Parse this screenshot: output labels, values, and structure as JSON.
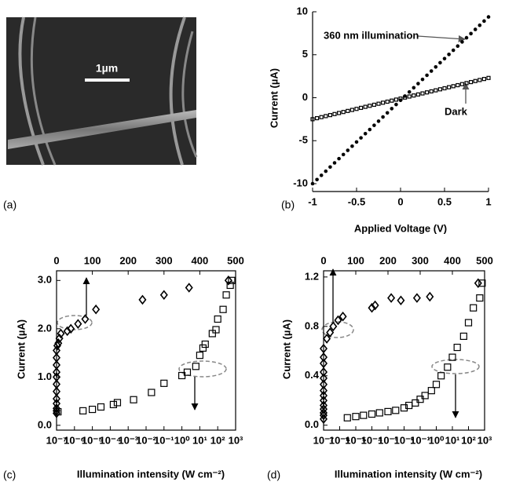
{
  "panels": {
    "labels": [
      "(a)",
      "(b)",
      "(c)",
      "(d)"
    ],
    "scale_bar": "1µm"
  },
  "chart_data": [
    {
      "type": "scatter",
      "xlabel": "Applied Voltage (V)",
      "ylabel": "Current (µA)",
      "annotations": [
        "360 nm illumination",
        "Dark"
      ],
      "xlim": [
        -1,
        1
      ],
      "ylim": [
        -10,
        10
      ],
      "xticks": [
        -1,
        -0.5,
        0,
        0.5,
        1
      ],
      "yticks": [
        -10,
        -5,
        0,
        5,
        10
      ],
      "x": [
        -1,
        -0.95,
        -0.9,
        -0.85,
        -0.8,
        -0.75,
        -0.7,
        -0.65,
        -0.6,
        -0.55,
        -0.5,
        -0.45,
        -0.4,
        -0.35,
        -0.3,
        -0.25,
        -0.2,
        -0.15,
        -0.1,
        -0.05,
        0,
        0.05,
        0.1,
        0.15,
        0.2,
        0.25,
        0.3,
        0.35,
        0.4,
        0.45,
        0.5,
        0.55,
        0.6,
        0.65,
        0.7,
        0.75,
        0.8,
        0.85,
        0.9,
        0.95,
        1
      ],
      "series": [
        {
          "marker": "dot",
          "color": "#000000",
          "values": [
            -10,
            -9.52,
            -9.03,
            -8.55,
            -8.06,
            -7.58,
            -7.09,
            -6.61,
            -6.12,
            -5.64,
            -5.15,
            -4.67,
            -4.18,
            -3.7,
            -3.21,
            -2.73,
            -2.24,
            -1.76,
            -1.27,
            -0.79,
            -0.3,
            0.19,
            0.67,
            1.16,
            1.64,
            2.13,
            2.61,
            3.1,
            3.58,
            4.07,
            4.55,
            5.04,
            5.52,
            6.01,
            6.49,
            6.98,
            7.46,
            7.95,
            8.43,
            8.92,
            9.4
          ]
        },
        {
          "marker": "square",
          "color": "#000000",
          "values": [
            -2.5,
            -2.38,
            -2.26,
            -2.14,
            -2.02,
            -1.9,
            -1.78,
            -1.66,
            -1.54,
            -1.42,
            -1.3,
            -1.18,
            -1.06,
            -0.94,
            -0.82,
            -0.7,
            -0.58,
            -0.46,
            -0.34,
            -0.22,
            -0.1,
            0.02,
            0.14,
            0.26,
            0.38,
            0.5,
            0.62,
            0.74,
            0.86,
            0.98,
            1.1,
            1.22,
            1.34,
            1.46,
            1.58,
            1.7,
            1.82,
            1.94,
            2.06,
            2.18,
            2.3
          ]
        }
      ]
    },
    {
      "type": "scatter",
      "xlabel": "Illumination intensity (W cm⁻²)",
      "ylabel": "Current (µA)",
      "xscale": "log",
      "xlim": [
        1e-07,
        1000
      ],
      "xticks": [
        {
          "value": 1e-07,
          "label": "10⁻⁷"
        },
        {
          "value": 1e-06,
          "label": "10⁻⁶"
        },
        {
          "value": 1e-05,
          "label": "10⁻⁵"
        },
        {
          "value": 0.0001,
          "label": "10⁻⁴"
        },
        {
          "value": 0.001,
          "label": "10⁻³"
        },
        {
          "value": 0.01,
          "label": "10⁻²"
        },
        {
          "value": 0.1,
          "label": "10⁻¹"
        },
        {
          "value": 1,
          "label": "10⁰"
        },
        {
          "value": 10,
          "label": "10¹"
        },
        {
          "value": 100,
          "label": "10²"
        },
        {
          "value": 1000,
          "label": "10³"
        }
      ],
      "x2lim": [
        0,
        500
      ],
      "x2ticks": [
        0,
        100,
        200,
        300,
        400,
        500
      ],
      "ylim": [
        -0.1,
        3.2
      ],
      "yticks": [
        {
          "value": 0,
          "label": "0.0"
        },
        {
          "value": 1,
          "label": "1.0"
        },
        {
          "value": 2,
          "label": "2.0"
        },
        {
          "value": 3,
          "label": "3.0"
        }
      ],
      "series": [
        {
          "marker": "square",
          "color": "#000000",
          "x": [
            1.2e-07,
            3e-06,
            1e-05,
            3e-05,
            0.00015,
            0.00025,
            0.002,
            0.02,
            0.1,
            1,
            2,
            6,
            10,
            15,
            20,
            50,
            80,
            100,
            200,
            300,
            500,
            600
          ],
          "values": [
            0.28,
            0.3,
            0.33,
            0.38,
            0.43,
            0.47,
            0.53,
            0.68,
            0.87,
            1.03,
            1.1,
            1.22,
            1.45,
            1.6,
            1.68,
            1.9,
            1.98,
            2.2,
            2.4,
            2.7,
            2.9,
            3.0
          ]
        },
        {
          "marker": "diamond",
          "color": "#000000",
          "axis": "x2",
          "x": [
            0,
            0,
            0,
            0,
            0,
            0,
            0,
            0,
            0,
            0,
            0,
            0,
            2,
            5,
            8,
            12,
            30,
            40,
            60,
            80,
            110,
            240,
            300,
            370,
            480
          ],
          "values": [
            0.25,
            0.3,
            0.35,
            0.45,
            0.55,
            0.7,
            0.85,
            1.0,
            1.1,
            1.25,
            1.4,
            1.55,
            1.65,
            1.7,
            1.8,
            1.9,
            1.95,
            2.0,
            2.1,
            2.2,
            2.4,
            2.6,
            2.7,
            2.85,
            3.0
          ]
        }
      ]
    },
    {
      "type": "scatter",
      "xlabel": "Illumination intensity (W cm⁻²)",
      "ylabel": "Current (µA)",
      "xscale": "log",
      "xlim": [
        1e-07,
        1000
      ],
      "xticks": [
        {
          "value": 1e-07,
          "label": "10⁻⁷"
        },
        {
          "value": 1e-06,
          "label": "10⁻⁶"
        },
        {
          "value": 1e-05,
          "label": "10⁻⁵"
        },
        {
          "value": 0.0001,
          "label": "10⁻⁴"
        },
        {
          "value": 0.001,
          "label": "10⁻³"
        },
        {
          "value": 0.01,
          "label": "10⁻²"
        },
        {
          "value": 0.1,
          "label": "10⁻¹"
        },
        {
          "value": 1,
          "label": "10⁰"
        },
        {
          "value": 10,
          "label": "10¹"
        },
        {
          "value": 100,
          "label": "10²"
        },
        {
          "value": 1000,
          "label": "10³"
        }
      ],
      "x2lim": [
        0,
        500
      ],
      "x2ticks": [
        0,
        100,
        200,
        300,
        400,
        500
      ],
      "ylim": [
        -0.04,
        1.25
      ],
      "yticks": [
        {
          "value": 0,
          "label": "0.0"
        },
        {
          "value": 0.4,
          "label": "0.4"
        },
        {
          "value": 0.8,
          "label": "0.8"
        },
        {
          "value": 1.2,
          "label": "1.2"
        }
      ],
      "series": [
        {
          "marker": "square",
          "color": "#000000",
          "x": [
            3e-06,
            1e-05,
            3e-05,
            0.0001,
            0.0003,
            0.001,
            0.003,
            0.01,
            0.02,
            0.05,
            0.1,
            0.2,
            0.5,
            1,
            2,
            5,
            10,
            20,
            50,
            100,
            200,
            500,
            700
          ],
          "values": [
            0.06,
            0.07,
            0.08,
            0.09,
            0.1,
            0.11,
            0.12,
            0.14,
            0.16,
            0.18,
            0.21,
            0.24,
            0.28,
            0.33,
            0.4,
            0.47,
            0.55,
            0.63,
            0.72,
            0.83,
            0.95,
            1.03,
            1.15
          ]
        },
        {
          "marker": "diamond",
          "color": "#000000",
          "axis": "x2",
          "x": [
            0,
            0,
            0,
            0,
            0,
            0,
            0,
            0,
            0,
            0,
            0,
            0,
            0,
            0,
            10,
            20,
            30,
            45,
            60,
            150,
            160,
            210,
            240,
            290,
            330,
            480
          ],
          "values": [
            0.05,
            0.08,
            0.1,
            0.13,
            0.16,
            0.2,
            0.24,
            0.28,
            0.33,
            0.38,
            0.43,
            0.5,
            0.55,
            0.62,
            0.7,
            0.75,
            0.8,
            0.85,
            0.88,
            0.95,
            0.97,
            1.03,
            1.01,
            1.03,
            1.04,
            1.15
          ]
        }
      ]
    }
  ]
}
